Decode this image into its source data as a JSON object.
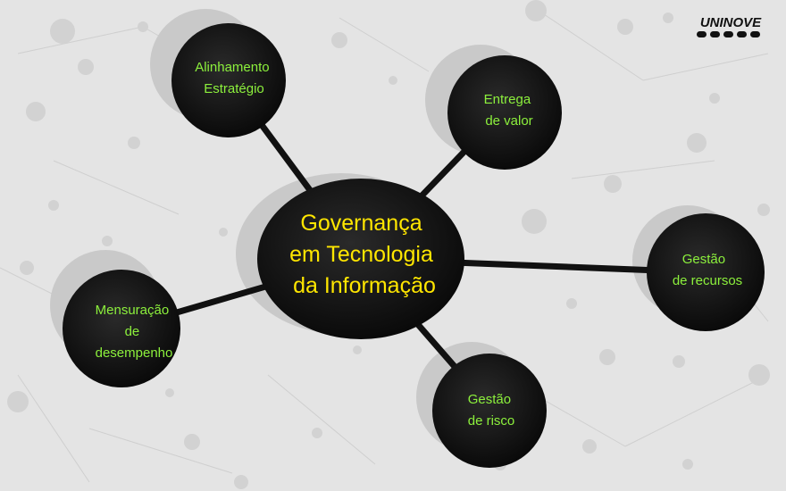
{
  "brand": {
    "logo_text": "UNINOVE"
  },
  "diagram": {
    "hub": {
      "lines": [
        "Governança",
        "em Tecnologia",
        "da Informação"
      ]
    },
    "nodes": [
      {
        "id": "alinhamento",
        "lines": [
          "Alinhamento",
          "Estratégio"
        ]
      },
      {
        "id": "entrega",
        "lines": [
          "Entrega",
          "de valor"
        ]
      },
      {
        "id": "recursos",
        "lines": [
          "Gestão",
          "de recursos"
        ]
      },
      {
        "id": "risco",
        "lines": [
          "Gestão",
          "de risco"
        ]
      },
      {
        "id": "mensuracao",
        "lines": [
          "Mensuração",
          "de",
          "desempenho"
        ]
      }
    ]
  },
  "colors": {
    "hub_text": "#ffe600",
    "node_text": "#8cf03c",
    "node_fill": "#111111",
    "background": "#e4e4e4"
  }
}
